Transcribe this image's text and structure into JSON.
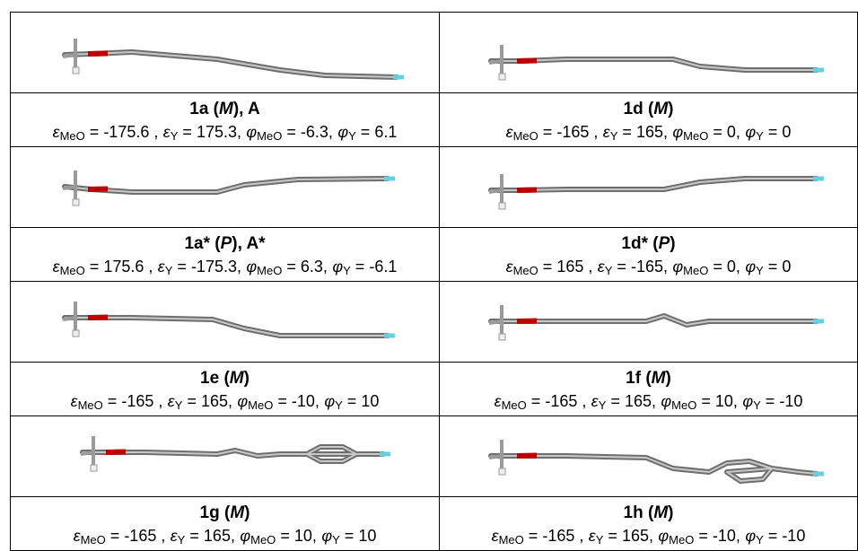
{
  "cells": [
    {
      "title": {
        "pre": "1a (",
        "italic": "M",
        "post": "), A"
      },
      "params": [
        {
          "symbol": "ε",
          "sub": "MeO",
          "rel": "=",
          "value": -175.6,
          "sep": " ,"
        },
        {
          "symbol": "ε",
          "sub": "Y",
          "rel": "=",
          "value": 175.3,
          "sep": ","
        },
        {
          "symbol": "φ",
          "sub": "MeO",
          "rel": "=",
          "value": -6.3,
          "sep": ","
        },
        {
          "symbol": "φ",
          "sub": "Y",
          "rel": "=",
          "value": 6.1
        }
      ]
    },
    {
      "title": {
        "pre": "1d (",
        "italic": "M",
        "post": ")"
      },
      "params": [
        {
          "symbol": "ε",
          "sub": "MeO",
          "rel": "=",
          "value": -165,
          "sep": " ,"
        },
        {
          "symbol": "ε",
          "sub": "Y",
          "rel": "=",
          "value": 165,
          "sep": ","
        },
        {
          "symbol": "φ",
          "sub": "MeO",
          "rel": "=",
          "value": 0,
          "sep": ","
        },
        {
          "symbol": "φ",
          "sub": "Y",
          "rel": "=",
          "value": 0
        }
      ]
    },
    {
      "title": {
        "pre": "1a* (",
        "italic": "P",
        "post": "), A*"
      },
      "params": [
        {
          "symbol": "ε",
          "sub": "MeO",
          "rel": "=",
          "value": 175.6,
          "sep": " ,"
        },
        {
          "symbol": "ε",
          "sub": "Y",
          "rel": "=",
          "value": -175.3,
          "sep": ","
        },
        {
          "symbol": "φ",
          "sub": "MeO",
          "rel": "=",
          "value": 6.3,
          "sep": ","
        },
        {
          "symbol": "φ",
          "sub": "Y",
          "rel": "=",
          "value": -6.1
        }
      ]
    },
    {
      "title": {
        "pre": "1d* (",
        "italic": "P",
        "post": ")"
      },
      "params": [
        {
          "symbol": "ε",
          "sub": "MeO",
          "rel": "=",
          "value": 165,
          "sep": " ,"
        },
        {
          "symbol": "ε",
          "sub": "Y",
          "rel": "=",
          "value": -165,
          "sep": ","
        },
        {
          "symbol": "φ",
          "sub": "MeO",
          "rel": "=",
          "value": 0,
          "sep": ","
        },
        {
          "symbol": "φ",
          "sub": "Y",
          "rel": "=",
          "value": 0
        }
      ]
    },
    {
      "title": {
        "pre": "1e (",
        "italic": "M",
        "post": ")"
      },
      "params": [
        {
          "symbol": "ε",
          "sub": "MeO",
          "rel": "=",
          "value": -165,
          "sep": " ,"
        },
        {
          "symbol": "ε",
          "sub": "Y",
          "rel": "=",
          "value": 165,
          "sep": ","
        },
        {
          "symbol": "φ",
          "sub": "MeO",
          "rel": "=",
          "value": -10,
          "sep": ","
        },
        {
          "symbol": "φ",
          "sub": "Y",
          "rel": "=",
          "value": 10
        }
      ]
    },
    {
      "title": {
        "pre": "1f (",
        "italic": "M",
        "post": ")"
      },
      "params": [
        {
          "symbol": "ε",
          "sub": "MeO",
          "rel": "=",
          "value": -165,
          "sep": " ,"
        },
        {
          "symbol": "ε",
          "sub": "Y",
          "rel": "=",
          "value": 165,
          "sep": ","
        },
        {
          "symbol": "φ",
          "sub": "MeO",
          "rel": "=",
          "value": 10,
          "sep": ","
        },
        {
          "symbol": "φ",
          "sub": "Y",
          "rel": "=",
          "value": -10
        }
      ]
    },
    {
      "title": {
        "pre": "1g (",
        "italic": "M",
        "post": ")"
      },
      "params": [
        {
          "symbol": "ε",
          "sub": "MeO",
          "rel": "=",
          "value": -165,
          "sep": " ,"
        },
        {
          "symbol": "ε",
          "sub": "Y",
          "rel": "=",
          "value": 165,
          "sep": ","
        },
        {
          "symbol": "φ",
          "sub": "MeO",
          "rel": "=",
          "value": 10,
          "sep": ","
        },
        {
          "symbol": "φ",
          "sub": "Y",
          "rel": "=",
          "value": 10
        }
      ]
    },
    {
      "title": {
        "pre": "1h (",
        "italic": "M",
        "post": ")"
      },
      "params": [
        {
          "symbol": "ε",
          "sub": "MeO",
          "rel": "=",
          "value": -165,
          "sep": " ,"
        },
        {
          "symbol": "ε",
          "sub": "Y",
          "rel": "=",
          "value": 165,
          "sep": ","
        },
        {
          "symbol": "φ",
          "sub": "MeO",
          "rel": "=",
          "value": -10,
          "sep": ","
        },
        {
          "symbol": "φ",
          "sub": "Y",
          "rel": "=",
          "value": -10
        }
      ]
    }
  ]
}
